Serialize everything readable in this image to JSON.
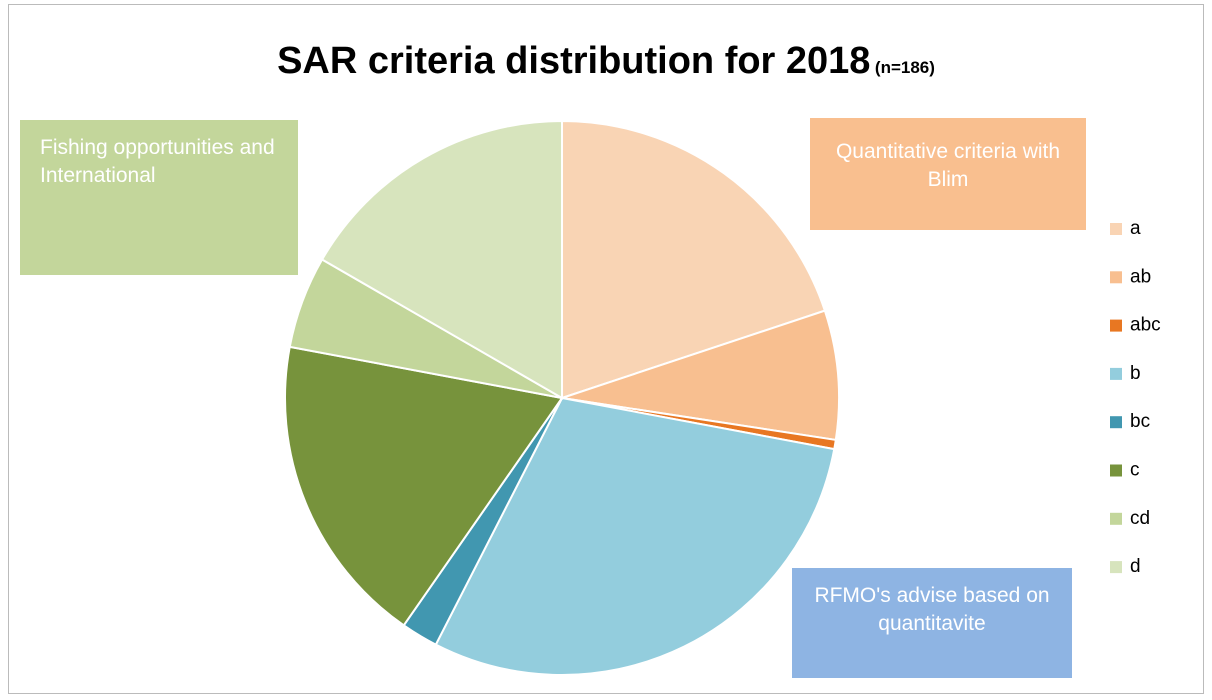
{
  "chart_data": {
    "type": "pie",
    "title": "SAR criteria distribution for 2018",
    "subtitle": "(n=186)",
    "categories": [
      "a",
      "ab",
      "abc",
      "b",
      "bc",
      "c",
      "cd",
      "d"
    ],
    "values": [
      37,
      14,
      1,
      55,
      4,
      34,
      10,
      31
    ],
    "colors": [
      "#f9d4b4",
      "#f8bf90",
      "#e87722",
      "#93cddd",
      "#4197b0",
      "#77933c",
      "#c3d69b",
      "#d7e4bd"
    ],
    "legend": "right",
    "annotations": [
      {
        "text": "Fishing opportunities and International",
        "color": "#c3d69b"
      },
      {
        "text": "Quantitative criteria with Blim",
        "color": "#f9bf8f"
      },
      {
        "text": "RFMO's advise based on quantitavite",
        "color": "#8eb4e3"
      }
    ]
  }
}
